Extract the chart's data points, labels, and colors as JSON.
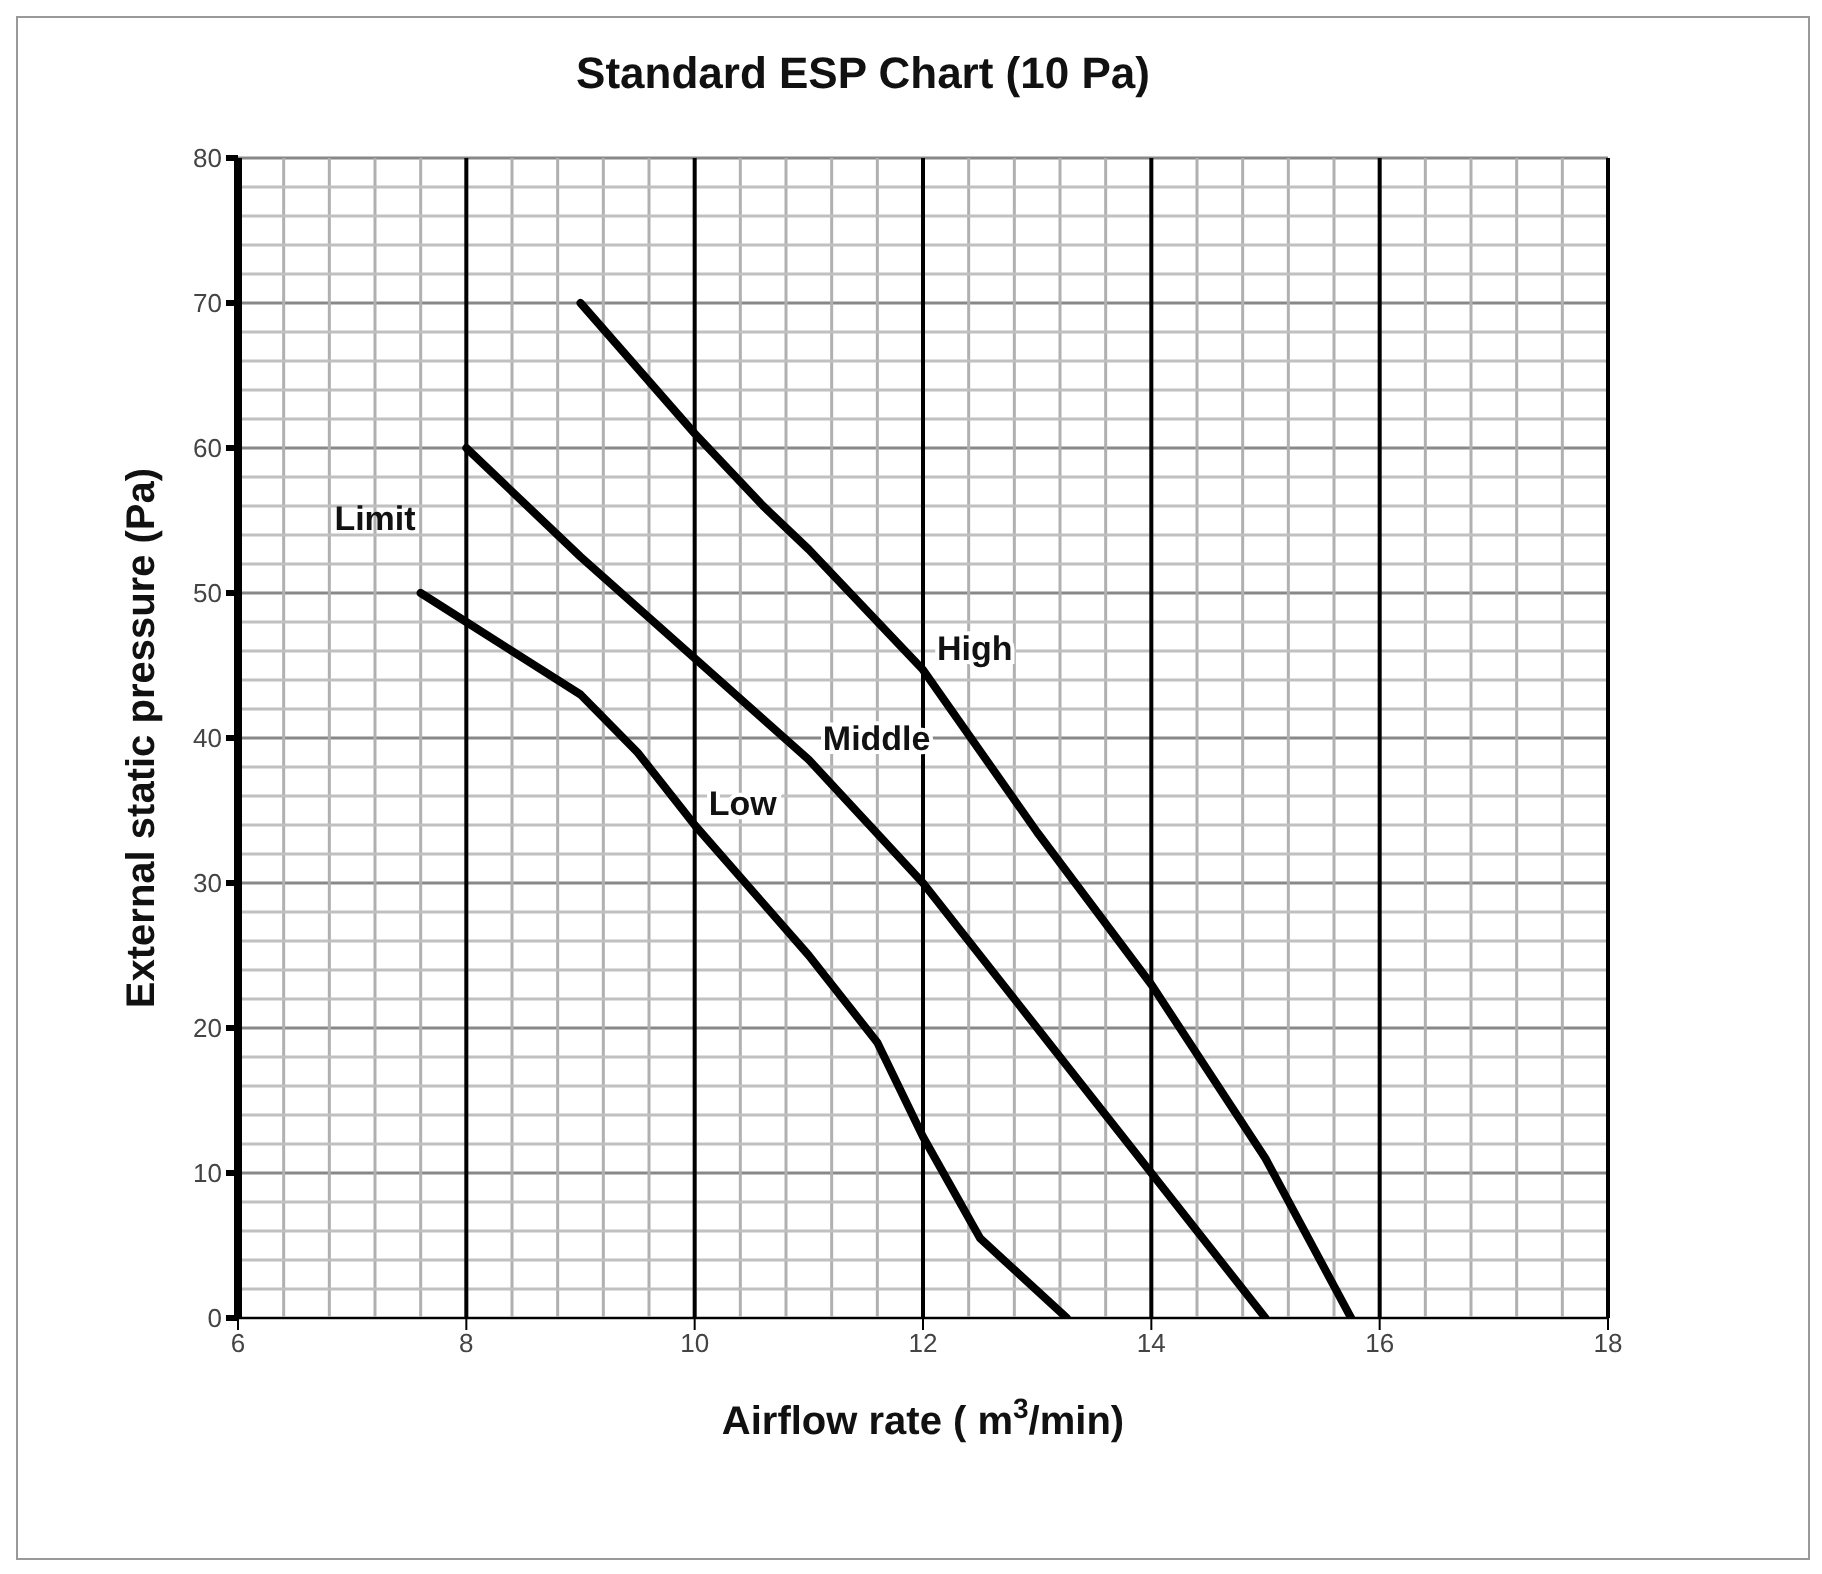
{
  "chart_data": {
    "type": "line",
    "title": "Standard ESP Chart (10 Pa)",
    "xlabel": "Airflow rate ( m$^{3}$/min)",
    "ylabel": "External static pressure (Pa)",
    "xlim": [
      6,
      18
    ],
    "xticks": [
      6,
      8,
      10,
      12,
      14,
      16,
      18
    ],
    "ylim": [
      0,
      80
    ],
    "yticks": [
      0,
      10,
      20,
      30,
      40,
      50,
      60,
      70,
      80
    ],
    "grid": true,
    "legend": false,
    "marker": "none",
    "line_style": "solid",
    "annotations": [
      "Limit"
    ],
    "series": [
      {
        "name": "High",
        "color": "#000000",
        "x": [
          9,
          10,
          10.6,
          11,
          12,
          13,
          14,
          15,
          15.75
        ],
        "values": [
          70,
          61,
          56,
          53,
          44.7,
          33.5,
          23,
          11,
          0
        ]
      },
      {
        "name": "Middle",
        "color": "#000000",
        "x": [
          8,
          9,
          10,
          11,
          12,
          13,
          14,
          15
        ],
        "values": [
          60,
          52.5,
          45.5,
          38.5,
          30,
          20,
          10,
          0
        ]
      },
      {
        "name": "Low",
        "color": "#000000",
        "x": [
          7.6,
          8,
          9,
          9.5,
          10,
          11,
          11.6,
          12,
          12.5,
          13.26
        ],
        "values": [
          50,
          48,
          43,
          39,
          34,
          25,
          19,
          12.5,
          5.5,
          0
        ]
      }
    ]
  }
}
